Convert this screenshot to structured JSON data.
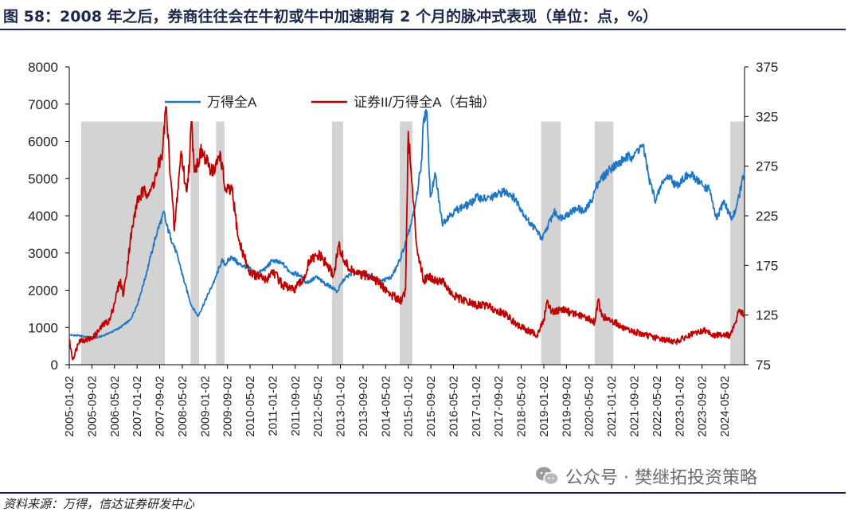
{
  "title": "图 58：2008 年之后，券商往往会在牛初或牛中加速期有 2 个月的脉冲式表现（单位：点，%）",
  "source": "资料来源：万得，信达证券研发中心",
  "watermark": "公众号 · 樊继拓投资策略",
  "colors": {
    "series1": "#1f77c4",
    "series2": "#c00000",
    "shade": "#d3d3d3",
    "axis": "#000000",
    "heading": "#1b2a4a"
  },
  "chart_data": {
    "type": "line",
    "title": "",
    "xlabel": "",
    "ylabel": "",
    "y_left": {
      "min": 0,
      "max": 8000,
      "ticks": [
        0,
        1000,
        2000,
        3000,
        4000,
        5000,
        6000,
        7000,
        8000
      ]
    },
    "y_right": {
      "min": 75,
      "max": 375,
      "ticks": [
        75,
        125,
        175,
        225,
        275,
        325,
        375
      ]
    },
    "x_ticks": [
      "2005-01-02",
      "2005-09-02",
      "2006-05-02",
      "2007-01-02",
      "2007-09-02",
      "2008-05-02",
      "2009-01-02",
      "2009-09-02",
      "2010-05-02",
      "2011-01-02",
      "2011-09-02",
      "2012-05-02",
      "2013-01-02",
      "2013-09-02",
      "2014-05-02",
      "2015-01-02",
      "2015-09-02",
      "2016-05-02",
      "2017-01-02",
      "2017-09-02",
      "2018-05-02",
      "2019-01-02",
      "2019-09-02",
      "2020-05-02",
      "2021-01-02",
      "2021-09-02",
      "2022-05-02",
      "2023-01-02",
      "2023-09-02",
      "2024-05-02"
    ],
    "x_range": [
      2005.0,
      2024.92
    ],
    "shaded_periods": [
      {
        "start": 2005.35,
        "end": 2007.82
      },
      {
        "start": 2008.58,
        "end": 2008.83
      },
      {
        "start": 2009.33,
        "end": 2009.58
      },
      {
        "start": 2012.75,
        "end": 2013.08
      },
      {
        "start": 2014.75,
        "end": 2015.12
      },
      {
        "start": 2018.92,
        "end": 2019.5
      },
      {
        "start": 2020.5,
        "end": 2021.05
      },
      {
        "start": 2024.5,
        "end": 2024.92
      }
    ],
    "legend": [
      "万得全A",
      "证券II/万得全A（右轴）"
    ],
    "legend_position": "top-left",
    "series": [
      {
        "name": "万得全A",
        "axis": "left",
        "x": [
          2005.0,
          2005.3,
          2005.5,
          2005.8,
          2006.0,
          2006.3,
          2006.5,
          2006.8,
          2007.0,
          2007.2,
          2007.4,
          2007.6,
          2007.8,
          2007.85,
          2008.0,
          2008.2,
          2008.4,
          2008.6,
          2008.8,
          2008.85,
          2009.0,
          2009.3,
          2009.5,
          2009.6,
          2009.8,
          2010.0,
          2010.3,
          2010.5,
          2010.8,
          2011.0,
          2011.3,
          2011.5,
          2011.8,
          2012.0,
          2012.3,
          2012.5,
          2012.8,
          2012.9,
          2013.1,
          2013.4,
          2013.6,
          2013.8,
          2014.0,
          2014.2,
          2014.5,
          2014.7,
          2014.9,
          2015.0,
          2015.2,
          2015.4,
          2015.45,
          2015.55,
          2015.65,
          2015.8,
          2016.0,
          2016.2,
          2016.5,
          2016.8,
          2017.0,
          2017.3,
          2017.5,
          2017.8,
          2018.0,
          2018.2,
          2018.5,
          2018.8,
          2018.95,
          2019.1,
          2019.3,
          2019.5,
          2019.8,
          2020.0,
          2020.2,
          2020.4,
          2020.6,
          2020.8,
          2021.0,
          2021.2,
          2021.4,
          2021.6,
          2021.7,
          2021.9,
          2022.0,
          2022.1,
          2022.3,
          2022.5,
          2022.7,
          2022.9,
          2023.1,
          2023.3,
          2023.5,
          2023.7,
          2023.9,
          2024.0,
          2024.1,
          2024.3,
          2024.45,
          2024.55,
          2024.7,
          2024.92
        ],
        "values": [
          800,
          780,
          750,
          720,
          780,
          900,
          1000,
          1200,
          1600,
          2200,
          2900,
          3600,
          4100,
          3800,
          3400,
          2900,
          2200,
          1600,
          1300,
          1400,
          1700,
          2300,
          2800,
          2700,
          2900,
          2700,
          2600,
          2400,
          2600,
          2800,
          2700,
          2500,
          2400,
          2200,
          2350,
          2200,
          2050,
          1950,
          2300,
          2500,
          2450,
          2400,
          2300,
          2250,
          2350,
          2700,
          3200,
          3500,
          4200,
          5500,
          6600,
          6800,
          4500,
          5100,
          3800,
          4000,
          4200,
          4300,
          4500,
          4450,
          4500,
          4650,
          4600,
          4400,
          3900,
          3600,
          3350,
          3700,
          4100,
          3950,
          4100,
          4200,
          4100,
          4400,
          4900,
          5100,
          5300,
          5400,
          5550,
          5600,
          5700,
          5900,
          5600,
          5000,
          4400,
          4900,
          5100,
          4800,
          5000,
          5100,
          5000,
          4800,
          4700,
          4200,
          3900,
          4400,
          4100,
          3900,
          4300,
          5200
        ]
      },
      {
        "name": "证券II/万得全A（右轴）",
        "axis": "right",
        "x": [
          2005.0,
          2005.1,
          2005.3,
          2005.5,
          2005.7,
          2006.0,
          2006.2,
          2006.5,
          2006.6,
          2006.8,
          2007.0,
          2007.2,
          2007.4,
          2007.6,
          2007.75,
          2007.85,
          2008.0,
          2008.1,
          2008.3,
          2008.45,
          2008.55,
          2008.6,
          2008.7,
          2008.9,
          2009.1,
          2009.3,
          2009.45,
          2009.6,
          2009.8,
          2010.0,
          2010.3,
          2010.5,
          2010.8,
          2011.0,
          2011.3,
          2011.6,
          2011.9,
          2012.1,
          2012.4,
          2012.6,
          2012.8,
          2012.95,
          2013.1,
          2013.3,
          2013.6,
          2013.9,
          2014.2,
          2014.5,
          2014.8,
          2014.92,
          2015.0,
          2015.1,
          2015.25,
          2015.45,
          2015.6,
          2015.8,
          2016.0,
          2016.3,
          2016.6,
          2017.0,
          2017.3,
          2017.6,
          2017.9,
          2018.2,
          2018.5,
          2018.8,
          2019.0,
          2019.1,
          2019.2,
          2019.35,
          2019.5,
          2019.8,
          2020.0,
          2020.3,
          2020.5,
          2020.6,
          2020.7,
          2020.9,
          2021.1,
          2021.4,
          2021.7,
          2022.0,
          2022.3,
          2022.6,
          2022.9,
          2023.2,
          2023.5,
          2023.8,
          2024.0,
          2024.3,
          2024.5,
          2024.6,
          2024.75,
          2024.92
        ],
        "values": [
          100,
          80,
          100,
          100,
          102,
          115,
          120,
          160,
          145,
          200,
          240,
          250,
          250,
          270,
          290,
          335,
          260,
          210,
          290,
          250,
          280,
          320,
          270,
          290,
          275,
          270,
          290,
          250,
          250,
          200,
          170,
          165,
          160,
          170,
          155,
          150,
          160,
          180,
          185,
          175,
          165,
          195,
          180,
          170,
          165,
          165,
          155,
          145,
          140,
          150,
          310,
          260,
          195,
          160,
          165,
          160,
          160,
          145,
          140,
          135,
          135,
          130,
          125,
          115,
          110,
          105,
          120,
          140,
          130,
          128,
          132,
          127,
          125,
          122,
          118,
          140,
          125,
          120,
          118,
          110,
          108,
          105,
          102,
          100,
          98,
          103,
          107,
          110,
          104,
          106,
          104,
          112,
          130,
          125
        ]
      }
    ]
  }
}
